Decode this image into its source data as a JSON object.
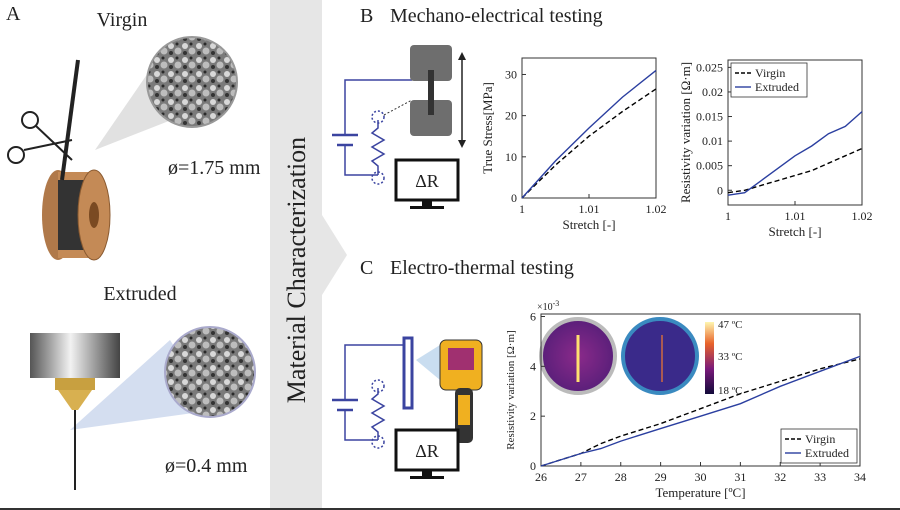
{
  "panel_a": {
    "label": "A",
    "virgin": "Virgin",
    "virgin_diameter": "ø=1.75 mm",
    "extruded": "Extruded",
    "extruded_diameter": "ø=0.4 mm"
  },
  "side_label": "Material Characterization",
  "panel_b": {
    "label": "B",
    "title": "Mechano-electrical testing",
    "meter": "ΔR"
  },
  "panel_c": {
    "label": "C",
    "title": "Electro-thermal testing",
    "meter": "ΔR",
    "colorbar_labels": [
      "47 ºC",
      "33 ºC",
      "18 ºC"
    ]
  },
  "chart_data": [
    {
      "type": "line",
      "xlabel": "Stretch [-]",
      "ylabel": "True Stress[MPa]",
      "x": [
        1,
        1.005,
        1.01,
        1.015,
        1.02
      ],
      "series": [
        {
          "color": "#000000",
          "style": "dashed",
          "values": [
            0,
            8,
            15,
            21,
            26.5
          ]
        },
        {
          "color": "#2b3fa0",
          "style": "solid",
          "values": [
            0,
            9,
            17,
            24.5,
            31
          ]
        }
      ],
      "xlim": [
        1,
        1.02
      ],
      "xticks": [
        1,
        1.01,
        1.02
      ],
      "ylim": [
        0,
        34
      ],
      "yticks": [
        0,
        10,
        20,
        30
      ]
    },
    {
      "type": "line",
      "xlabel": "Stretch [-]",
      "ylabel": "Resistivity variation [Ω·m]",
      "x": [
        1,
        1.0025,
        1.005,
        1.0075,
        1.01,
        1.0125,
        1.015,
        1.0175,
        1.02
      ],
      "series": [
        {
          "name": "Virgin",
          "color": "#000000",
          "style": "dashed",
          "values": [
            -0.0005,
            0,
            0.001,
            0.002,
            0.003,
            0.004,
            0.0055,
            0.007,
            0.0085
          ]
        },
        {
          "name": "Extruded",
          "color": "#2b3fa0",
          "style": "solid",
          "values": [
            -0.001,
            -0.0005,
            0.002,
            0.0045,
            0.007,
            0.009,
            0.0115,
            0.013,
            0.016
          ]
        }
      ],
      "xlim": [
        1,
        1.02
      ],
      "xticks": [
        1,
        1.01,
        1.02
      ],
      "ylim": [
        -0.003,
        0.0265
      ],
      "yticks": [
        0,
        0.005,
        0.01,
        0.015,
        0.02,
        0.025
      ],
      "legend": "upper left"
    },
    {
      "type": "line",
      "xlabel": "Temperature [ºC]",
      "ylabel": "Resistivity variation [Ω·m]",
      "y_multiplier": {
        "base": "×10",
        "exponent": "-3"
      },
      "x": [
        26,
        27,
        27.5,
        28,
        29,
        30,
        31,
        32,
        33,
        34
      ],
      "series": [
        {
          "name": "Virgin",
          "color": "#000000",
          "style": "dashed",
          "values": [
            0,
            0.5,
            0.9,
            1.2,
            1.7,
            2.3,
            2.9,
            3.4,
            3.9,
            4.3
          ]
        },
        {
          "name": "Extruded",
          "color": "#2b3fa0",
          "style": "solid",
          "values": [
            0,
            0.5,
            0.7,
            1.0,
            1.5,
            2.0,
            2.5,
            3.2,
            3.8,
            4.4
          ]
        }
      ],
      "xlim": [
        26,
        34
      ],
      "xticks": [
        26,
        27,
        28,
        29,
        30,
        31,
        32,
        33,
        34
      ],
      "ylim": [
        0,
        6.1
      ],
      "yticks": [
        0,
        2,
        4,
        6
      ],
      "legend": "lower right"
    }
  ]
}
